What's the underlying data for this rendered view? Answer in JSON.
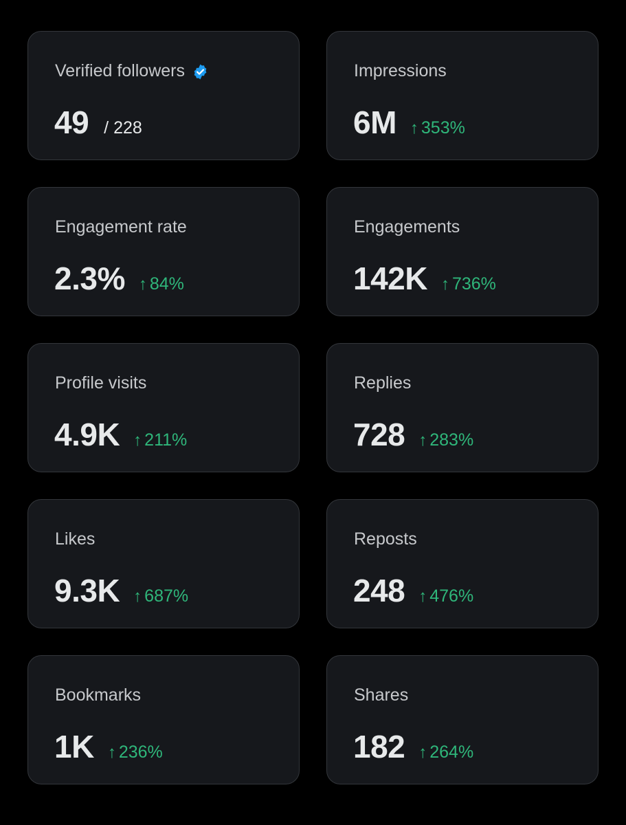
{
  "colors": {
    "background": "#000000",
    "card": "#16181c",
    "card_border": "#33363b",
    "label": "#c7c9cc",
    "value": "#e7e9ea",
    "positive_change": "#2fb67a",
    "verified_badge": "#1d9bf0"
  },
  "icons": {
    "verified": "verified-badge-icon",
    "increase": "arrow-up-icon"
  },
  "stats": {
    "verified_followers": {
      "label": "Verified followers",
      "value": "49",
      "total": "/ 228"
    },
    "impressions": {
      "label": "Impressions",
      "value": "6M",
      "arrow": "↑",
      "change": "353%"
    },
    "engagement_rate": {
      "label": "Engagement rate",
      "value": "2.3%",
      "arrow": "↑",
      "change": "84%"
    },
    "engagements": {
      "label": "Engagements",
      "value": "142K",
      "arrow": "↑",
      "change": "736%"
    },
    "profile_visits": {
      "label": "Profile visits",
      "value": "4.9K",
      "arrow": "↑",
      "change": "211%"
    },
    "replies": {
      "label": "Replies",
      "value": "728",
      "arrow": "↑",
      "change": "283%"
    },
    "likes": {
      "label": "Likes",
      "value": "9.3K",
      "arrow": "↑",
      "change": "687%"
    },
    "reposts": {
      "label": "Reposts",
      "value": "248",
      "arrow": "↑",
      "change": "476%"
    },
    "bookmarks": {
      "label": "Bookmarks",
      "value": "1K",
      "arrow": "↑",
      "change": "236%"
    },
    "shares": {
      "label": "Shares",
      "value": "182",
      "arrow": "↑",
      "change": "264%"
    }
  }
}
